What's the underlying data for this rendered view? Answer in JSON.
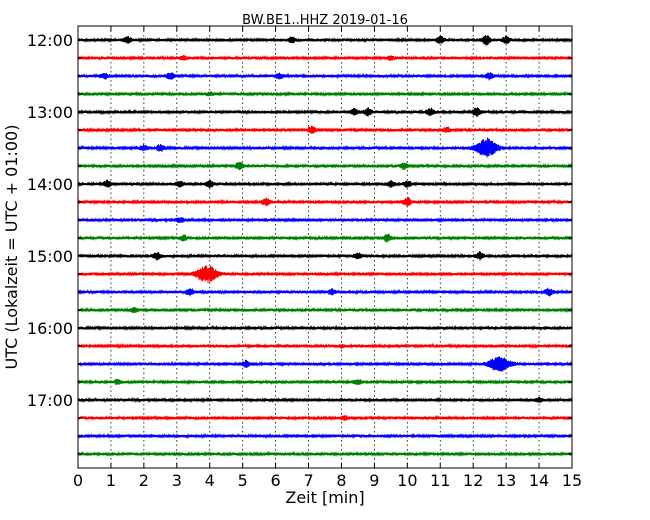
{
  "chart_data": {
    "type": "line",
    "title": "BW.BE1..HHZ 2019-01-16",
    "xlabel": "Zeit  [min]",
    "ylabel": "UTC (Lokalzeit = UTC + 01:00)",
    "xlim": [
      0,
      15
    ],
    "x_ticks": [
      "0",
      "1",
      "2",
      "3",
      "4",
      "5",
      "6",
      "7",
      "8",
      "9",
      "10",
      "11",
      "12",
      "13",
      "14",
      "15"
    ],
    "y_tick_labels": [
      "12:00",
      "13:00",
      "14:00",
      "15:00",
      "16:00",
      "17:00"
    ],
    "grid": "vertical dotted",
    "colors": [
      "#000000",
      "#ff0000",
      "#0000ff",
      "#008000"
    ],
    "traces": [
      {
        "start": "12:00",
        "events": [
          {
            "t": 1.5,
            "amp": 0.35
          },
          {
            "t": 6.5,
            "amp": 0.3
          },
          {
            "t": 11.0,
            "amp": 0.45
          },
          {
            "t": 12.4,
            "amp": 0.55
          },
          {
            "t": 13.0,
            "amp": 0.4
          }
        ]
      },
      {
        "start": "12:15",
        "events": [
          {
            "t": 3.2,
            "amp": 0.2
          },
          {
            "t": 9.5,
            "amp": 0.2
          }
        ]
      },
      {
        "start": "12:30",
        "events": [
          {
            "t": 0.8,
            "amp": 0.3
          },
          {
            "t": 2.8,
            "amp": 0.35
          },
          {
            "t": 6.1,
            "amp": 0.3
          },
          {
            "t": 12.5,
            "amp": 0.35
          }
        ]
      },
      {
        "start": "12:45",
        "events": [
          {
            "t": 4.0,
            "amp": 0.15
          }
        ]
      },
      {
        "start": "13:00",
        "events": [
          {
            "t": 8.4,
            "amp": 0.35
          },
          {
            "t": 8.8,
            "amp": 0.45
          },
          {
            "t": 10.7,
            "amp": 0.4
          },
          {
            "t": 12.1,
            "amp": 0.45
          }
        ]
      },
      {
        "start": "13:15",
        "events": [
          {
            "t": 7.1,
            "amp": 0.4
          },
          {
            "t": 11.2,
            "amp": 0.25
          }
        ]
      },
      {
        "start": "13:30",
        "events": [
          {
            "t": 2.0,
            "amp": 0.3
          },
          {
            "t": 2.5,
            "amp": 0.35
          },
          {
            "t": 12.4,
            "amp": 1.0
          }
        ]
      },
      {
        "start": "13:45",
        "events": [
          {
            "t": 4.9,
            "amp": 0.4
          },
          {
            "t": 9.9,
            "amp": 0.35
          }
        ]
      },
      {
        "start": "14:00",
        "events": [
          {
            "t": 0.9,
            "amp": 0.35
          },
          {
            "t": 3.1,
            "amp": 0.3
          },
          {
            "t": 4.0,
            "amp": 0.35
          },
          {
            "t": 9.5,
            "amp": 0.35
          },
          {
            "t": 10.0,
            "amp": 0.3
          }
        ]
      },
      {
        "start": "14:15",
        "events": [
          {
            "t": 5.7,
            "amp": 0.4
          },
          {
            "t": 10.0,
            "amp": 0.45
          }
        ]
      },
      {
        "start": "14:30",
        "events": [
          {
            "t": 3.1,
            "amp": 0.3
          }
        ]
      },
      {
        "start": "14:45",
        "events": [
          {
            "t": 3.2,
            "amp": 0.3
          },
          {
            "t": 9.4,
            "amp": 0.4
          }
        ]
      },
      {
        "start": "15:00",
        "events": [
          {
            "t": 2.4,
            "amp": 0.4
          },
          {
            "t": 8.5,
            "amp": 0.3
          },
          {
            "t": 12.2,
            "amp": 0.4
          }
        ]
      },
      {
        "start": "15:15",
        "events": [
          {
            "t": 3.9,
            "amp": 0.95
          }
        ]
      },
      {
        "start": "15:30",
        "events": [
          {
            "t": 3.4,
            "amp": 0.4
          },
          {
            "t": 7.7,
            "amp": 0.3
          },
          {
            "t": 14.3,
            "amp": 0.4
          }
        ]
      },
      {
        "start": "15:45",
        "events": [
          {
            "t": 1.7,
            "amp": 0.25
          }
        ]
      },
      {
        "start": "16:00",
        "events": []
      },
      {
        "start": "16:15",
        "events": [
          {
            "t": 8.0,
            "amp": 0.15
          }
        ]
      },
      {
        "start": "16:30",
        "events": [
          {
            "t": 5.1,
            "amp": 0.35
          },
          {
            "t": 12.8,
            "amp": 0.8
          }
        ]
      },
      {
        "start": "16:45",
        "events": [
          {
            "t": 1.2,
            "amp": 0.25
          },
          {
            "t": 8.5,
            "amp": 0.25
          }
        ]
      },
      {
        "start": "17:00",
        "events": [
          {
            "t": 14.0,
            "amp": 0.25
          }
        ]
      },
      {
        "start": "17:15",
        "events": [
          {
            "t": 8.1,
            "amp": 0.2
          }
        ]
      },
      {
        "start": "17:30",
        "events": []
      },
      {
        "start": "17:45",
        "events": []
      }
    ]
  }
}
